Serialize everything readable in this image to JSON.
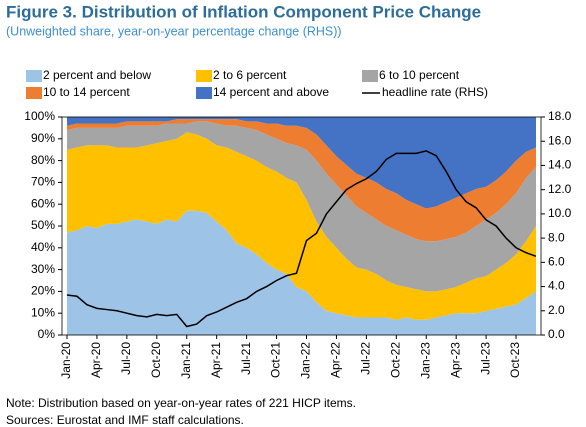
{
  "chart_data": {
    "type": "stacked_area_line",
    "title": "Figure 3. Distribution of Inflation Component Price Change",
    "subtitle": "(Unweighted share, year-on-year percentage change (RHS))",
    "notes": [
      "Note: Distribution based on year-on-year rates of 221 HICP items.",
      "Sources: Eurostat and IMF staff calculations."
    ],
    "categories": [
      "Jan-20",
      null,
      null,
      "Apr-20",
      null,
      null,
      "Jul-20",
      null,
      null,
      "Oct-20",
      null,
      null,
      "Jan-21",
      null,
      null,
      "Apr-21",
      null,
      null,
      "Jul-21",
      null,
      null,
      "Oct-21",
      null,
      null,
      "Jan-22",
      null,
      null,
      "Apr-22",
      null,
      null,
      "Jul-22",
      null,
      null,
      "Oct-22",
      null,
      null,
      "Jan-23",
      null,
      null,
      "Apr-23",
      null,
      null,
      "Jul-23",
      null,
      null,
      "Oct-23",
      null,
      null
    ],
    "series": [
      {
        "name": "2 percent and below",
        "color": "#9dc3e6",
        "values": [
          47,
          48,
          50,
          49,
          51,
          51,
          52,
          53,
          52,
          51,
          53,
          52,
          57,
          57,
          56,
          52,
          48,
          42,
          40,
          37,
          33,
          30,
          28,
          22,
          20,
          15,
          11,
          10,
          9,
          8,
          8,
          8,
          8,
          7,
          8,
          7,
          7,
          8,
          9,
          10,
          10,
          10,
          11,
          12,
          13,
          14,
          17,
          20
        ]
      },
      {
        "name": "2 to 6 percent",
        "color": "#ffc000",
        "values": [
          38,
          38,
          37,
          38,
          36,
          35,
          34,
          33,
          35,
          37,
          36,
          38,
          36,
          35,
          34,
          35,
          38,
          42,
          42,
          43,
          44,
          45,
          44,
          48,
          42,
          37,
          34,
          30,
          26,
          23,
          22,
          20,
          17,
          16,
          14,
          14,
          13,
          12,
          12,
          12,
          14,
          16,
          16,
          18,
          20,
          23,
          26,
          30
        ]
      },
      {
        "name": "6 to 10 percent",
        "color": "#a5a5a5",
        "values": [
          9,
          9,
          8,
          8,
          8,
          9,
          10,
          10,
          9,
          8,
          8,
          7,
          4,
          6,
          8,
          10,
          10,
          12,
          13,
          14,
          15,
          15,
          16,
          17,
          23,
          28,
          29,
          29,
          29,
          28,
          26,
          25,
          25,
          25,
          24,
          23,
          23,
          23,
          23,
          23,
          23,
          24,
          26,
          26,
          27,
          28,
          29,
          27
        ]
      },
      {
        "name": "10 to 14 percent",
        "color": "#ed7d31",
        "values": [
          2,
          2,
          2,
          2,
          2,
          2,
          2,
          2,
          2,
          2,
          1,
          2,
          2,
          1,
          1,
          2,
          3,
          3,
          3,
          4,
          5,
          7,
          8,
          9,
          10,
          12,
          13,
          13,
          14,
          15,
          16,
          17,
          17,
          17,
          16,
          16,
          15,
          16,
          17,
          18,
          18,
          17,
          15,
          15,
          15,
          15,
          12,
          9
        ]
      },
      {
        "name": "14 percent and above",
        "color": "#4472c4",
        "values": [
          4,
          3,
          3,
          3,
          3,
          3,
          2,
          2,
          2,
          2,
          2,
          1,
          1,
          1,
          1,
          1,
          1,
          1,
          2,
          2,
          3,
          3,
          4,
          4,
          5,
          8,
          13,
          18,
          22,
          26,
          28,
          30,
          33,
          35,
          38,
          40,
          42,
          41,
          39,
          37,
          35,
          33,
          32,
          29,
          25,
          20,
          16,
          14
        ]
      },
      {
        "name": "headline rate (RHS)",
        "color": "#000000",
        "axis": "y2",
        "values": [
          3.3,
          3.2,
          2.5,
          2.2,
          2.1,
          2.0,
          1.8,
          1.6,
          1.5,
          1.7,
          1.6,
          1.7,
          0.7,
          0.9,
          1.6,
          1.9,
          2.3,
          2.7,
          3.0,
          3.6,
          4.0,
          4.5,
          4.9,
          5.1,
          7.8,
          8.4,
          10.0,
          11.0,
          12.0,
          12.5,
          12.9,
          13.5,
          14.5,
          15.0,
          15.0,
          15.0,
          15.2,
          14.8,
          13.5,
          12.0,
          11.0,
          10.5,
          9.5,
          9.0,
          8.0,
          7.2,
          6.8,
          6.5
        ]
      }
    ],
    "ylim": [
      0,
      100
    ],
    "yticks": [
      {
        "value": 0,
        "label": "0%"
      },
      {
        "value": 10,
        "label": "10%"
      },
      {
        "value": 20,
        "label": "20%"
      },
      {
        "value": 30,
        "label": "30%"
      },
      {
        "value": 40,
        "label": "40%"
      },
      {
        "value": 50,
        "label": "50%"
      },
      {
        "value": 60,
        "label": "60%"
      },
      {
        "value": 70,
        "label": "70%"
      },
      {
        "value": 80,
        "label": "80%"
      },
      {
        "value": 90,
        "label": "90%"
      },
      {
        "value": 100,
        "label": "100%"
      }
    ],
    "y2lim": [
      0,
      18
    ],
    "y2ticks": [
      {
        "value": 0,
        "label": "0.0"
      },
      {
        "value": 2,
        "label": "2.0"
      },
      {
        "value": 4,
        "label": "4.0"
      },
      {
        "value": 6,
        "label": "6.0"
      },
      {
        "value": 8,
        "label": "8.0"
      },
      {
        "value": 10,
        "label": "10.0"
      },
      {
        "value": 12,
        "label": "12.0"
      },
      {
        "value": 14,
        "label": "14.0"
      },
      {
        "value": 16,
        "label": "16.0"
      },
      {
        "value": 18,
        "label": "18.0"
      }
    ]
  }
}
